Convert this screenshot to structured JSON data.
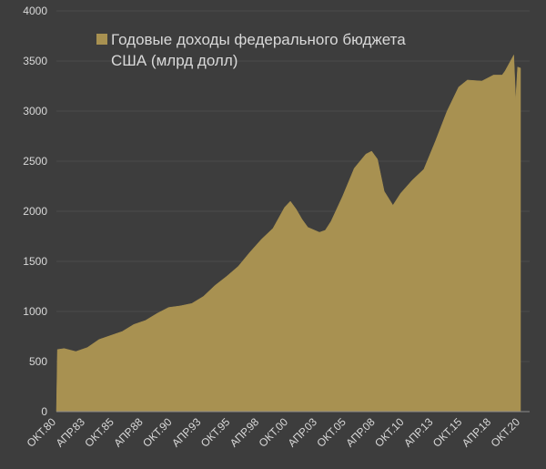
{
  "chart_data": {
    "type": "area",
    "title": "",
    "xlabel": "",
    "ylabel": "",
    "ylim": [
      0,
      4000
    ],
    "yticks": [
      0,
      500,
      1000,
      1500,
      2000,
      2500,
      3000,
      3500,
      4000
    ],
    "grid": true,
    "legend_position": "top-left",
    "colors": {
      "background": "#3d3d3d",
      "fill": "#a89151",
      "grid": "#4a4a4a",
      "text": "#d9d9d9"
    },
    "series": [
      {
        "name": "Годовые доходы федерального бюджета США (млрд долл)",
        "points": [
          [
            "1980-10",
            0
          ],
          [
            "1980-11",
            620
          ],
          [
            "1981-06",
            630
          ],
          [
            "1982-06",
            600
          ],
          [
            "1983-06",
            640
          ],
          [
            "1984-06",
            720
          ],
          [
            "1985-06",
            760
          ],
          [
            "1986-06",
            800
          ],
          [
            "1987-06",
            870
          ],
          [
            "1988-06",
            910
          ],
          [
            "1989-06",
            980
          ],
          [
            "1990-06",
            1040
          ],
          [
            "1991-06",
            1055
          ],
          [
            "1992-06",
            1080
          ],
          [
            "1993-06",
            1150
          ],
          [
            "1994-06",
            1260
          ],
          [
            "1995-06",
            1350
          ],
          [
            "1996-06",
            1450
          ],
          [
            "1997-06",
            1590
          ],
          [
            "1998-06",
            1720
          ],
          [
            "1999-06",
            1830
          ],
          [
            "2000-06",
            2040
          ],
          [
            "2000-12",
            2100
          ],
          [
            "2001-06",
            2020
          ],
          [
            "2001-12",
            1920
          ],
          [
            "2002-06",
            1840
          ],
          [
            "2003-06",
            1790
          ],
          [
            "2003-12",
            1810
          ],
          [
            "2004-06",
            1900
          ],
          [
            "2005-06",
            2150
          ],
          [
            "2006-06",
            2430
          ],
          [
            "2007-06",
            2570
          ],
          [
            "2007-12",
            2600
          ],
          [
            "2008-06",
            2520
          ],
          [
            "2009-01",
            2200
          ],
          [
            "2009-10",
            2060
          ],
          [
            "2010-06",
            2180
          ],
          [
            "2011-06",
            2310
          ],
          [
            "2012-06",
            2420
          ],
          [
            "2013-06",
            2700
          ],
          [
            "2014-06",
            3000
          ],
          [
            "2015-06",
            3240
          ],
          [
            "2016-03",
            3310
          ],
          [
            "2017-06",
            3300
          ],
          [
            "2018-06",
            3360
          ],
          [
            "2019-03",
            3360
          ],
          [
            "2019-06",
            3400
          ],
          [
            "2020-03",
            3560
          ],
          [
            "2020-05",
            3110
          ],
          [
            "2020-07",
            3440
          ],
          [
            "2020-10",
            3430
          ]
        ]
      }
    ],
    "x_ticks": [
      {
        "date": "1980-10",
        "label": "ОКТ.80"
      },
      {
        "date": "1983-04",
        "label": "АПР.83"
      },
      {
        "date": "1985-10",
        "label": "ОКТ.85"
      },
      {
        "date": "1988-04",
        "label": "АПР.88"
      },
      {
        "date": "1990-10",
        "label": "ОКТ.90"
      },
      {
        "date": "1993-04",
        "label": "АПР.93"
      },
      {
        "date": "1995-10",
        "label": "ОКТ.95"
      },
      {
        "date": "1998-04",
        "label": "АПР.98"
      },
      {
        "date": "2000-10",
        "label": "ОКТ.00"
      },
      {
        "date": "2003-04",
        "label": "АПР.03"
      },
      {
        "date": "2005-10",
        "label": "ОКТ.05"
      },
      {
        "date": "2008-04",
        "label": "АПР.08"
      },
      {
        "date": "2010-10",
        "label": "ОКТ.10"
      },
      {
        "date": "2013-04",
        "label": "АПР.13"
      },
      {
        "date": "2015-10",
        "label": "ОКТ.15"
      },
      {
        "date": "2018-04",
        "label": "АПР.18"
      },
      {
        "date": "2020-10",
        "label": "ОКТ.20"
      }
    ],
    "legend": {
      "lines": [
        "Годовые доходы федерального бюджета",
        "США (млрд долл)"
      ]
    }
  }
}
